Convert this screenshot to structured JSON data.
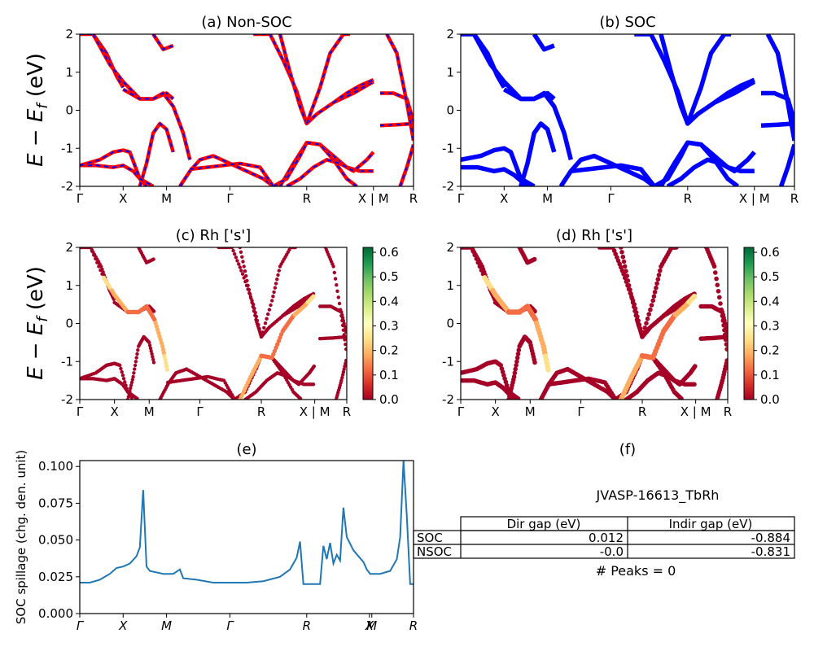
{
  "figure": {
    "ylabel_top": "E − E",
    "ylabel_sub": "f",
    "ylabel_unit": " (eV)",
    "spillage_ylabel": "SOC spillage (chg. den. unit)",
    "colorbar_ticks": [
      "0.0",
      "0.1",
      "0.2",
      "0.3",
      "0.4",
      "0.5",
      "0.6"
    ],
    "kpath_labels": [
      "Γ",
      "X",
      "M",
      "Γ",
      "R",
      "X | M",
      "R"
    ]
  },
  "panels": {
    "a": {
      "title": "(a) Non-SOC"
    },
    "b": {
      "title": "(b) SOC"
    },
    "c": {
      "title": "(c)  Rh ['s']"
    },
    "d": {
      "title": "(d) Rh ['s']"
    },
    "e": {
      "title": "(e)"
    },
    "f": {
      "title": "(f)"
    }
  },
  "table": {
    "material": "JVASP-16613_TbRh",
    "col_headers": [
      "Dir gap (eV)",
      "Indir gap (eV)"
    ],
    "rows": [
      {
        "label": "SOC",
        "dir": "0.012",
        "indir": "-0.884"
      },
      {
        "label": "NSOC",
        "dir": "-0.0",
        "indir": "-0.831"
      }
    ],
    "peaks": "# Peaks = 0"
  },
  "colors": {
    "nonsoc_line": "#ff0000",
    "nonsoc_dash": "#0000ff",
    "soc_line": "#0000ff",
    "spillage_line": "#1f77b4",
    "colormap": [
      "#a50026",
      "#d73027",
      "#f46d43",
      "#fdae61",
      "#fee08b",
      "#ffffbf",
      "#d9ef8b",
      "#a6d96a",
      "#66bd63",
      "#1a9850",
      "#006837"
    ]
  },
  "chart_data": [
    {
      "type": "line",
      "panel": "a",
      "title": "(a) Non-SOC",
      "ylabel": "E − E_f (eV)",
      "ylim": [
        -2,
        2
      ],
      "yticks": [
        -2,
        -1,
        0,
        1,
        2
      ],
      "xticks": [
        "Γ",
        "X",
        "M",
        "Γ",
        "R",
        "X | M",
        "R"
      ],
      "kpath_positions": [
        0,
        0.13,
        0.26,
        0.45,
        0.68,
        0.88,
        1.0
      ],
      "series": [
        {
          "x": [
            0,
            0.04,
            0.08,
            0.11,
            0.13
          ],
          "y": [
            2.0,
            2.0,
            1.5,
            0.9,
            0.6
          ]
        },
        {
          "x": [
            0.04,
            0.09,
            0.13,
            0.18,
            0.22,
            0.26,
            0.28
          ],
          "y": [
            2.0,
            1.2,
            0.75,
            0.3,
            0.3,
            0.45,
            0.3
          ]
        },
        {
          "x": [
            0.13,
            0.18,
            0.22,
            0.25,
            0.28,
            0.31,
            0.33
          ],
          "y": [
            0.55,
            0.3,
            0.3,
            0.45,
            0.1,
            -0.6,
            -1.3
          ]
        },
        {
          "x": [
            0.18,
            0.2,
            0.22,
            0.24,
            0.26,
            0.28
          ],
          "y": [
            -2.0,
            -1.4,
            -0.6,
            -0.35,
            -0.5,
            -1.1
          ]
        },
        {
          "x": [
            0.0,
            0.05,
            0.1,
            0.13,
            0.16,
            0.2
          ],
          "y": [
            -1.45,
            -1.45,
            -1.5,
            -1.45,
            -1.6,
            -2.0
          ]
        },
        {
          "x": [
            0.0,
            0.06,
            0.1,
            0.13,
            0.15,
            0.18,
            0.22
          ],
          "y": [
            -1.45,
            -1.3,
            -1.1,
            -1.05,
            -1.1,
            -1.8,
            -2.0
          ]
        },
        {
          "x": [
            0.3,
            0.33,
            0.36,
            0.4,
            0.45,
            0.5,
            0.55,
            0.58
          ],
          "y": [
            -2.0,
            -1.6,
            -1.3,
            -1.2,
            -1.4,
            -1.6,
            -1.8,
            -2.0
          ]
        },
        {
          "x": [
            0.33,
            0.38,
            0.43,
            0.48,
            0.54,
            0.58
          ],
          "y": [
            -1.55,
            -1.5,
            -1.45,
            -1.4,
            -1.5,
            -2.0
          ]
        },
        {
          "x": [
            0.22,
            0.25,
            0.28
          ],
          "y": [
            2.0,
            1.6,
            1.7
          ]
        },
        {
          "x": [
            0.52,
            0.57,
            0.61,
            0.65,
            0.68,
            0.71,
            0.76,
            0.82,
            0.88
          ],
          "y": [
            2.0,
            2.0,
            1.3,
            0.5,
            -0.35,
            -0.1,
            0.2,
            0.45,
            0.75
          ]
        },
        {
          "x": [
            0.6,
            0.63,
            0.66,
            0.68
          ],
          "y": [
            2.0,
            1.0,
            0.1,
            -0.35
          ]
        },
        {
          "x": [
            0.68,
            0.72,
            0.75,
            0.79,
            0.81
          ],
          "y": [
            -0.35,
            0.6,
            1.5,
            2.0,
            2.0
          ]
        },
        {
          "x": [
            0.6,
            0.64,
            0.68,
            0.72,
            0.76,
            0.8,
            0.84,
            0.88
          ],
          "y": [
            -2.0,
            -1.4,
            -0.85,
            -0.9,
            -1.2,
            -1.5,
            -1.6,
            -1.6
          ]
        },
        {
          "x": [
            0.58,
            0.62,
            0.66,
            0.68,
            0.72,
            0.76,
            0.8,
            0.83
          ],
          "y": [
            -2.0,
            -1.8,
            -1.2,
            -0.85,
            -0.9,
            -1.3,
            -1.8,
            -2.0
          ]
        },
        {
          "x": [
            0.62,
            0.66,
            0.7,
            0.74,
            0.78,
            0.82,
            0.86,
            0.88
          ],
          "y": [
            -2.0,
            -1.8,
            -1.5,
            -1.3,
            -1.4,
            -1.6,
            -1.3,
            -1.1
          ]
        },
        {
          "x": [
            0.76,
            0.8,
            0.84,
            0.88
          ],
          "y": [
            0.2,
            0.45,
            0.65,
            0.8
          ]
        },
        {
          "x": [
            0.9,
            0.94,
            0.98,
            1.0
          ],
          "y": [
            0.45,
            0.45,
            0.3,
            -0.3
          ]
        },
        {
          "x": [
            0.9,
            0.95,
            1.0
          ],
          "y": [
            -0.4,
            -0.38,
            -0.35
          ]
        },
        {
          "x": [
            0.92,
            0.95,
            0.98,
            1.0
          ],
          "y": [
            2.0,
            1.5,
            0.2,
            -0.8
          ]
        },
        {
          "x": [
            0.96,
            0.98,
            1.0
          ],
          "y": [
            -2.0,
            -1.5,
            -0.9
          ]
        }
      ]
    },
    {
      "type": "line",
      "panel": "b",
      "title": "(b) SOC",
      "ylim": [
        -2,
        2
      ],
      "yticks": [
        -2,
        -1,
        0,
        1,
        2
      ],
      "xticks": [
        "Γ",
        "X",
        "M",
        "Γ",
        "R",
        "X | M",
        "R"
      ],
      "kpath_positions": [
        0,
        0.13,
        0.26,
        0.45,
        0.68,
        0.88,
        1.0
      ],
      "series": [
        {
          "x": [
            0,
            0.04,
            0.08,
            0.11,
            0.13
          ],
          "y": [
            2.0,
            2.0,
            1.5,
            0.9,
            0.6
          ]
        },
        {
          "x": [
            0.04,
            0.09,
            0.13,
            0.18,
            0.22,
            0.26,
            0.28
          ],
          "y": [
            2.0,
            1.2,
            0.75,
            0.3,
            0.3,
            0.45,
            0.3
          ]
        },
        {
          "x": [
            0.13,
            0.18,
            0.22,
            0.25,
            0.28,
            0.31,
            0.33
          ],
          "y": [
            0.55,
            0.3,
            0.3,
            0.45,
            0.1,
            -0.6,
            -1.3
          ]
        },
        {
          "x": [
            0.18,
            0.2,
            0.22,
            0.24,
            0.26,
            0.28
          ],
          "y": [
            -2.0,
            -1.4,
            -0.6,
            -0.35,
            -0.5,
            -1.1
          ]
        },
        {
          "x": [
            0.0,
            0.05,
            0.1,
            0.13,
            0.16,
            0.2
          ],
          "y": [
            -1.5,
            -1.5,
            -1.6,
            -1.55,
            -1.7,
            -2.0
          ]
        },
        {
          "x": [
            0.0,
            0.06,
            0.1,
            0.13,
            0.15,
            0.18,
            0.22
          ],
          "y": [
            -1.3,
            -1.2,
            -1.05,
            -1.0,
            -1.1,
            -1.8,
            -2.0
          ]
        },
        {
          "x": [
            0.3,
            0.33,
            0.36,
            0.4,
            0.45,
            0.5,
            0.55,
            0.58
          ],
          "y": [
            -2.0,
            -1.6,
            -1.3,
            -1.2,
            -1.4,
            -1.6,
            -1.8,
            -2.0
          ]
        },
        {
          "x": [
            0.33,
            0.38,
            0.43,
            0.48,
            0.54,
            0.58
          ],
          "y": [
            -1.6,
            -1.55,
            -1.5,
            -1.45,
            -1.55,
            -2.0
          ]
        },
        {
          "x": [
            0.22,
            0.25,
            0.28
          ],
          "y": [
            2.0,
            1.6,
            1.7
          ]
        },
        {
          "x": [
            0.52,
            0.57,
            0.61,
            0.65,
            0.68,
            0.71,
            0.76,
            0.82,
            0.88
          ],
          "y": [
            2.0,
            2.0,
            1.3,
            0.5,
            -0.35,
            -0.1,
            0.2,
            0.45,
            0.75
          ]
        },
        {
          "x": [
            0.6,
            0.63,
            0.66,
            0.68
          ],
          "y": [
            2.0,
            1.0,
            0.1,
            -0.35
          ]
        },
        {
          "x": [
            0.68,
            0.72,
            0.75,
            0.79,
            0.81
          ],
          "y": [
            -0.35,
            0.6,
            1.5,
            2.0,
            2.0
          ]
        },
        {
          "x": [
            0.6,
            0.64,
            0.68,
            0.72,
            0.76,
            0.8,
            0.84,
            0.88
          ],
          "y": [
            -2.0,
            -1.4,
            -0.85,
            -0.9,
            -1.2,
            -1.5,
            -1.6,
            -1.6
          ]
        },
        {
          "x": [
            0.58,
            0.62,
            0.66,
            0.68,
            0.72,
            0.76,
            0.8,
            0.83
          ],
          "y": [
            -2.0,
            -1.8,
            -1.2,
            -0.85,
            -0.9,
            -1.3,
            -1.8,
            -2.0
          ]
        },
        {
          "x": [
            0.62,
            0.66,
            0.7,
            0.74,
            0.78,
            0.82,
            0.86,
            0.88
          ],
          "y": [
            -2.0,
            -1.8,
            -1.5,
            -1.3,
            -1.4,
            -1.6,
            -1.3,
            -1.1
          ]
        },
        {
          "x": [
            0.76,
            0.8,
            0.84,
            0.88
          ],
          "y": [
            0.2,
            0.45,
            0.65,
            0.8
          ]
        },
        {
          "x": [
            0.9,
            0.94,
            0.98,
            1.0
          ],
          "y": [
            0.45,
            0.45,
            0.3,
            -0.3
          ]
        },
        {
          "x": [
            0.9,
            0.95,
            1.0
          ],
          "y": [
            -0.4,
            -0.38,
            -0.35
          ]
        },
        {
          "x": [
            0.92,
            0.95,
            0.98,
            1.0
          ],
          "y": [
            2.0,
            1.5,
            0.2,
            -0.8
          ]
        },
        {
          "x": [
            0.96,
            0.98,
            1.0
          ],
          "y": [
            -2.0,
            -1.5,
            -0.9
          ]
        }
      ]
    },
    {
      "type": "scatter",
      "panel": "c",
      "title": "(c)  Rh ['s']",
      "ylim": [
        -2,
        2
      ],
      "yticks": [
        -2,
        -1,
        0,
        1,
        2
      ],
      "colorbar_range": [
        0.0,
        0.62
      ],
      "xticks": [
        "Γ",
        "X",
        "M",
        "Γ",
        "R",
        "X | M",
        "R"
      ],
      "kpath_positions": [
        0,
        0.13,
        0.26,
        0.45,
        0.68,
        0.88,
        1.0
      ],
      "highlight_segments": [
        {
          "x": [
            0.09,
            0.13,
            0.18,
            0.22,
            0.25,
            0.28,
            0.31,
            0.33
          ],
          "y": [
            1.2,
            0.75,
            0.3,
            0.3,
            0.45,
            0.1,
            -0.6,
            -1.3
          ],
          "w": [
            0.25,
            0.2,
            0.15,
            0.15,
            0.12,
            0.15,
            0.2,
            0.25
          ]
        },
        {
          "x": [
            0.6,
            0.64,
            0.68,
            0.72,
            0.76,
            0.8,
            0.84,
            0.88
          ],
          "y": [
            -2.0,
            -1.4,
            -0.85,
            -0.9,
            -0.2,
            0.2,
            0.45,
            0.75
          ],
          "w": [
            0.2,
            0.2,
            0.15,
            0.15,
            0.15,
            0.15,
            0.2,
            0.25
          ]
        }
      ]
    },
    {
      "type": "scatter",
      "panel": "d",
      "title": "(d) Rh ['s']",
      "ylim": [
        -2,
        2
      ],
      "yticks": [
        -2,
        -1,
        0,
        1,
        2
      ],
      "colorbar_range": [
        0.0,
        0.62
      ],
      "xticks": [
        "Γ",
        "X",
        "M",
        "Γ",
        "R",
        "X | M",
        "R"
      ],
      "kpath_positions": [
        0,
        0.13,
        0.26,
        0.45,
        0.68,
        0.88,
        1.0
      ]
    },
    {
      "type": "line",
      "panel": "e",
      "title": "(e)",
      "ylabel": "SOC spillage (chg. den. unit)",
      "ylim": [
        0.0,
        0.104
      ],
      "yticks": [
        "0.000",
        "0.025",
        "0.050",
        "0.075",
        "0.100"
      ],
      "xticks": [
        "Γ",
        "X",
        "M",
        "Γ",
        "R",
        "X",
        "M",
        "R"
      ],
      "kpath_positions": [
        0,
        0.13,
        0.26,
        0.45,
        0.68,
        0.868,
        0.875,
        1.0
      ],
      "series": [
        {
          "name": "",
          "x": [
            0,
            0.03,
            0.06,
            0.09,
            0.11,
            0.13,
            0.15,
            0.17,
            0.18,
            0.19,
            0.2,
            0.21,
            0.25,
            0.28,
            0.3,
            0.31,
            0.35,
            0.4,
            0.45,
            0.5,
            0.55,
            0.6,
            0.63,
            0.65,
            0.66,
            0.67,
            0.68,
            0.7,
            0.72,
            0.73,
            0.74,
            0.75,
            0.76,
            0.77,
            0.78,
            0.79,
            0.8,
            0.82,
            0.85,
            0.86,
            0.87,
            0.9,
            0.93,
            0.95,
            0.96,
            0.97,
            0.98,
            0.99,
            1.0
          ],
          "y": [
            0.021,
            0.021,
            0.023,
            0.027,
            0.031,
            0.032,
            0.034,
            0.039,
            0.045,
            0.084,
            0.032,
            0.029,
            0.027,
            0.027,
            0.03,
            0.024,
            0.023,
            0.021,
            0.021,
            0.021,
            0.022,
            0.025,
            0.03,
            0.038,
            0.049,
            0.02,
            0.02,
            0.02,
            0.02,
            0.046,
            0.037,
            0.048,
            0.034,
            0.04,
            0.036,
            0.072,
            0.052,
            0.043,
            0.035,
            0.03,
            0.027,
            0.027,
            0.029,
            0.037,
            0.052,
            0.104,
            0.066,
            0.02,
            0.02
          ]
        }
      ]
    }
  ]
}
